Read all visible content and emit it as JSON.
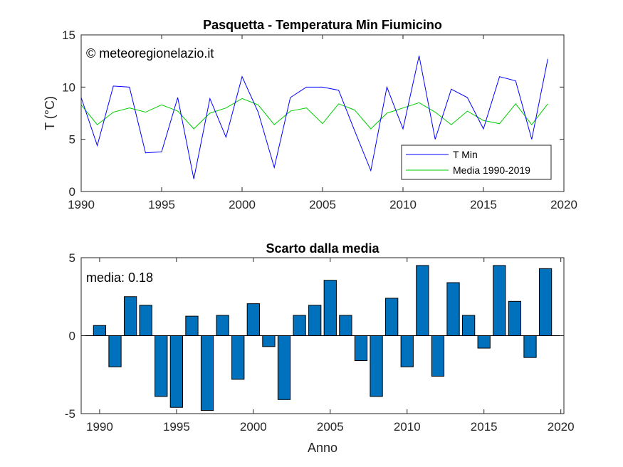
{
  "figure": {
    "background": "#ffffff"
  },
  "chart_data": [
    {
      "type": "line",
      "title": "Pasquetta - Temperatura Min Fiumicino",
      "annotation": "© meteoregionelazio.it",
      "xlabel": "",
      "ylabel": "T (°C)",
      "xlim": [
        1990,
        2020
      ],
      "ylim": [
        0,
        15
      ],
      "xticks": [
        1990,
        1995,
        2000,
        2005,
        2010,
        2015,
        2020
      ],
      "yticks": [
        0,
        5,
        10,
        15
      ],
      "grid": false,
      "legend_position": "bottom-right",
      "x": [
        1990,
        1991,
        1992,
        1993,
        1994,
        1995,
        1996,
        1997,
        1998,
        1999,
        2000,
        2001,
        2002,
        2003,
        2004,
        2005,
        2006,
        2007,
        2008,
        2009,
        2010,
        2011,
        2012,
        2013,
        2014,
        2015,
        2016,
        2017,
        2018,
        2019
      ],
      "series": [
        {
          "name": "T Min",
          "color": "#0000ff",
          "values": [
            9.0,
            4.4,
            10.1,
            10.0,
            3.7,
            3.8,
            9.0,
            1.2,
            8.9,
            5.2,
            11.0,
            7.6,
            2.3,
            9.0,
            10.0,
            10.0,
            9.7,
            5.8,
            2.0,
            10.0,
            6.0,
            13.0,
            5.0,
            9.8,
            9.0,
            6.0,
            11.0,
            10.6,
            5.0,
            12.7
          ]
        },
        {
          "name": "Media 1990-2019",
          "color": "#00cc00",
          "values": [
            8.3,
            6.4,
            7.6,
            8.0,
            7.6,
            8.3,
            7.7,
            6.0,
            7.5,
            8.0,
            8.9,
            8.3,
            6.4,
            7.7,
            8.0,
            6.5,
            8.4,
            7.8,
            6.0,
            7.5,
            8.0,
            8.5,
            7.6,
            6.4,
            7.7,
            6.8,
            6.5,
            8.4,
            6.4,
            8.4
          ]
        }
      ]
    },
    {
      "type": "bar",
      "title": "Scarto dalla media",
      "annotation": "media: 0.18",
      "xlabel": "Anno",
      "ylabel": "",
      "xlim": [
        1988.8,
        2020.2
      ],
      "ylim": [
        -5,
        5
      ],
      "xticks": [
        1990,
        1995,
        2000,
        2005,
        2010,
        2015,
        2020
      ],
      "yticks": [
        -5,
        0,
        5
      ],
      "grid": false,
      "bar_color": "#0072bd",
      "x": [
        1990,
        1991,
        1992,
        1993,
        1994,
        1995,
        1996,
        1997,
        1998,
        1999,
        2000,
        2001,
        2002,
        2003,
        2004,
        2005,
        2006,
        2007,
        2008,
        2009,
        2010,
        2011,
        2012,
        2013,
        2014,
        2015,
        2016,
        2017,
        2018,
        2019
      ],
      "values": [
        0.65,
        -2.0,
        2.5,
        1.95,
        -3.9,
        -4.6,
        1.25,
        -4.8,
        1.3,
        -2.8,
        2.05,
        -0.7,
        -4.1,
        1.3,
        1.95,
        3.55,
        1.3,
        -1.6,
        -3.9,
        2.4,
        -2.0,
        4.5,
        -2.6,
        3.4,
        1.3,
        -0.8,
        4.5,
        2.2,
        -1.4,
        4.3
      ]
    }
  ]
}
